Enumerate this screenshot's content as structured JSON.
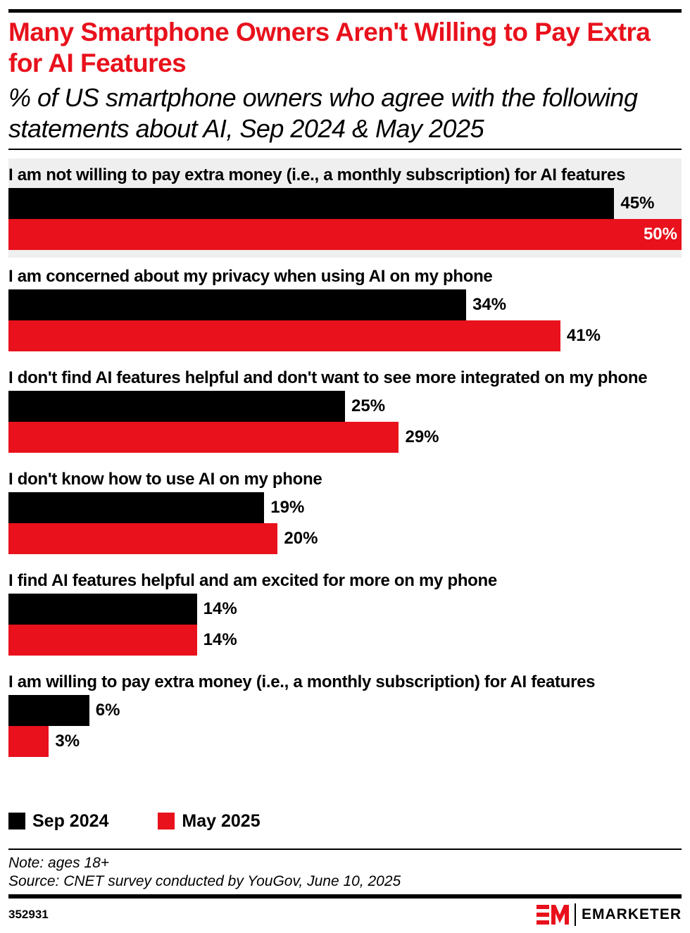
{
  "header": {
    "title": "Many Smartphone Owners Aren't Willing to Pay Extra for AI Features",
    "subtitle": "% of US smartphone owners who agree with the following statements about AI, Sep 2024 & May 2025"
  },
  "chart_data": {
    "type": "bar",
    "orientation": "horizontal",
    "title": "Many Smartphone Owners Aren't Willing to Pay Extra for AI Features",
    "subtitle": "% of US smartphone owners who agree with the following statements about AI, Sep 2024 & May 2025",
    "categories": [
      "I am not willing to pay extra money (i.e., a monthly subscription) for AI features",
      "I am concerned about my privacy when using AI on my phone",
      "I don't find AI features helpful and don't want to see more integrated on my phone",
      "I don't know how to use AI on my phone",
      "I find AI features helpful and am excited for more on my phone",
      "I am willing to pay extra money (i.e., a monthly subscription) for AI features"
    ],
    "series": [
      {
        "name": "Sep 2024",
        "color": "#000000",
        "values": [
          45,
          34,
          25,
          19,
          14,
          6
        ],
        "labels": [
          "45%",
          "34%",
          "25%",
          "19%",
          "14%",
          "6%"
        ]
      },
      {
        "name": "May 2025",
        "color": "#e8111c",
        "values": [
          50,
          41,
          29,
          20,
          14,
          3
        ],
        "labels": [
          "50%",
          "41%",
          "29%",
          "20%",
          "14%",
          "3%"
        ]
      }
    ],
    "xlim": [
      0,
      50
    ],
    "grid": false,
    "legend": "bottom-left",
    "highlight_category_index": 0,
    "highlight_color": "#efefef"
  },
  "footer": {
    "note": "Note: ages 18+",
    "source": "Source: CNET survey conducted by YouGov, June 10, 2025",
    "chart_id": "352931",
    "brand": "EMARKETER"
  }
}
